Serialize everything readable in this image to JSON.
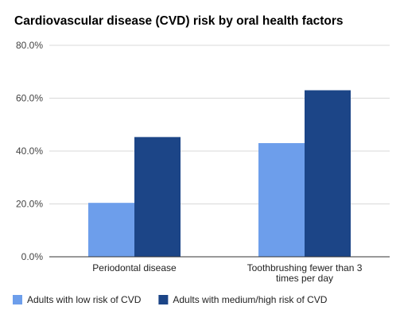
{
  "chart_data": {
    "type": "bar",
    "title": "Cardiovascular disease (CVD) risk by oral health factors",
    "categories": [
      [
        "Periodontal disease"
      ],
      [
        "Toothbrushing fewer than 3",
        "times per day"
      ]
    ],
    "series": [
      {
        "name": "Adults with low risk of CVD",
        "color": "#6d9eeb",
        "values": [
          20.4,
          43.0
        ]
      },
      {
        "name": "Adults with medium/high risk of CVD",
        "color": "#1c4587",
        "values": [
          45.3,
          63.0
        ]
      }
    ],
    "y_ticks": [
      "0.0%",
      "20.0%",
      "40.0%",
      "60.0%",
      "80.0%"
    ],
    "ylim": [
      0,
      80
    ],
    "grid": true,
    "legend_position": "bottom-left"
  }
}
